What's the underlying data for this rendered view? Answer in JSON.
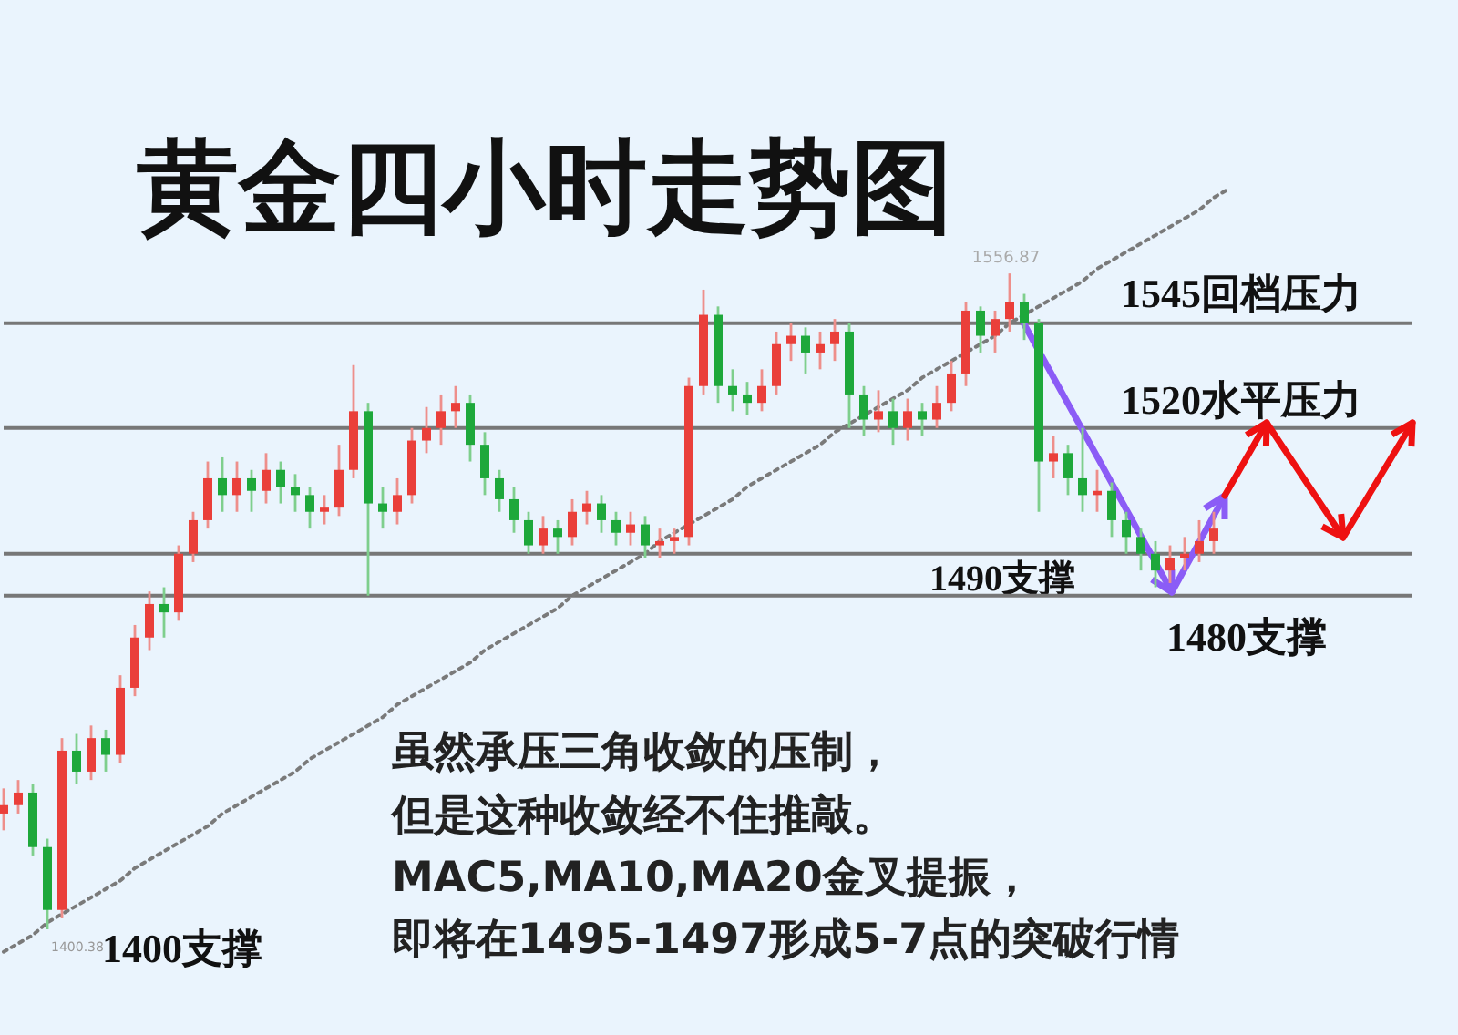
{
  "chart_data": {
    "type": "candlestick",
    "title": "黄金四小时走势图",
    "tick_labels": false,
    "categories": [
      null,
      null,
      null,
      null,
      null,
      null,
      null,
      null,
      null,
      null,
      null,
      null,
      null,
      null,
      null,
      null,
      null,
      null,
      null,
      null,
      null,
      null,
      null,
      null,
      null,
      null,
      null,
      null,
      null,
      null,
      null,
      null,
      null,
      null,
      null,
      null,
      null,
      null,
      null,
      null,
      null,
      null,
      null,
      null,
      null,
      null,
      null,
      null,
      null,
      null,
      null,
      null,
      null,
      null,
      null,
      null,
      null,
      null,
      null,
      null,
      null,
      null,
      null,
      null,
      null,
      null,
      null,
      null,
      null,
      null,
      null,
      null,
      null,
      null,
      null,
      null,
      null,
      null,
      null,
      null,
      null,
      null,
      null,
      null,
      null,
      null,
      null,
      null,
      null,
      null,
      null,
      null,
      null,
      null,
      null,
      null,
      null,
      null
    ],
    "ohlc": [
      [
        1428,
        1434,
        1424,
        1430
      ],
      [
        1430,
        1436,
        1428,
        1433
      ],
      [
        1433,
        1435,
        1418,
        1420
      ],
      [
        1420,
        1422,
        1400.38,
        1405
      ],
      [
        1405,
        1446,
        1403,
        1443
      ],
      [
        1443,
        1447,
        1435,
        1438
      ],
      [
        1438,
        1449,
        1436,
        1446
      ],
      [
        1446,
        1448,
        1438,
        1442
      ],
      [
        1442,
        1461,
        1440,
        1458
      ],
      [
        1458,
        1473,
        1456,
        1470
      ],
      [
        1470,
        1481,
        1467,
        1478
      ],
      [
        1478,
        1482,
        1470,
        1476
      ],
      [
        1476,
        1492,
        1474,
        1490
      ],
      [
        1490,
        1500,
        1488,
        1498
      ],
      [
        1498,
        1512,
        1496,
        1508
      ],
      [
        1508,
        1513,
        1500,
        1504
      ],
      [
        1504,
        1512,
        1500,
        1508
      ],
      [
        1508,
        1510,
        1500,
        1505
      ],
      [
        1505,
        1514,
        1502,
        1510
      ],
      [
        1510,
        1512,
        1502,
        1506
      ],
      [
        1506,
        1509,
        1500,
        1504
      ],
      [
        1504,
        1506,
        1496,
        1500
      ],
      [
        1500,
        1504,
        1497,
        1501
      ],
      [
        1501,
        1516,
        1499,
        1510
      ],
      [
        1510,
        1535,
        1508,
        1524
      ],
      [
        1524,
        1526,
        1480,
        1502
      ],
      [
        1502,
        1506,
        1496,
        1500
      ],
      [
        1500,
        1508,
        1497,
        1504
      ],
      [
        1504,
        1520,
        1502,
        1517
      ],
      [
        1517,
        1525,
        1514,
        1520
      ],
      [
        1520,
        1528,
        1516,
        1524
      ],
      [
        1524,
        1530,
        1520,
        1526
      ],
      [
        1526,
        1528,
        1512,
        1516
      ],
      [
        1516,
        1519,
        1504,
        1508
      ],
      [
        1508,
        1510,
        1500,
        1503
      ],
      [
        1503,
        1506,
        1495,
        1498
      ],
      [
        1498,
        1500,
        1490,
        1492
      ],
      [
        1492,
        1499,
        1490,
        1496
      ],
      [
        1496,
        1498,
        1490,
        1494
      ],
      [
        1494,
        1503,
        1492,
        1500
      ],
      [
        1500,
        1505,
        1497,
        1502
      ],
      [
        1502,
        1504,
        1495,
        1498
      ],
      [
        1498,
        1500,
        1492,
        1495
      ],
      [
        1495,
        1500,
        1492,
        1497
      ],
      [
        1497,
        1499,
        1489,
        1492
      ],
      [
        1492,
        1496,
        1489,
        1493
      ],
      [
        1493,
        1496,
        1490,
        1494
      ],
      [
        1494,
        1532,
        1492,
        1530
      ],
      [
        1530,
        1553,
        1528,
        1547
      ],
      [
        1547,
        1549,
        1526,
        1530
      ],
      [
        1530,
        1534,
        1524,
        1528
      ],
      [
        1528,
        1531,
        1523,
        1526
      ],
      [
        1526,
        1534,
        1524,
        1530
      ],
      [
        1530,
        1543,
        1528,
        1540
      ],
      [
        1540,
        1545,
        1536,
        1542
      ],
      [
        1542,
        1544,
        1533,
        1538
      ],
      [
        1538,
        1543,
        1534,
        1540
      ],
      [
        1540,
        1546,
        1536,
        1543
      ],
      [
        1543,
        1545,
        1520,
        1528
      ],
      [
        1528,
        1530,
        1518,
        1522
      ],
      [
        1522,
        1529,
        1519,
        1524
      ],
      [
        1524,
        1527,
        1516,
        1520
      ],
      [
        1520,
        1527,
        1517,
        1524
      ],
      [
        1524,
        1526,
        1518,
        1522
      ],
      [
        1522,
        1530,
        1520,
        1526
      ],
      [
        1526,
        1536,
        1524,
        1533
      ],
      [
        1533,
        1550,
        1530,
        1548
      ],
      [
        1548,
        1549,
        1538,
        1542
      ],
      [
        1542,
        1548,
        1538,
        1546
      ],
      [
        1546,
        1556.87,
        1543,
        1550
      ],
      [
        1550,
        1552,
        1541,
        1545
      ],
      [
        1545,
        1546,
        1500,
        1512
      ],
      [
        1512,
        1518,
        1508,
        1514
      ],
      [
        1514,
        1516,
        1504,
        1508
      ],
      [
        1508,
        1520,
        1500,
        1504
      ],
      [
        1504,
        1510,
        1500,
        1505
      ],
      [
        1505,
        1507,
        1494,
        1498
      ],
      [
        1498,
        1500,
        1490,
        1494
      ],
      [
        1494,
        1496,
        1486,
        1490
      ],
      [
        1490,
        1493,
        1482,
        1486
      ],
      [
        1486,
        1492,
        1483,
        1489
      ],
      [
        1489,
        1494,
        1486,
        1490
      ],
      [
        1490,
        1498,
        1488,
        1493
      ],
      [
        1493,
        1500,
        1490,
        1496
      ],
      null,
      null,
      null,
      null,
      null,
      null,
      null,
      null,
      null,
      null,
      null,
      null,
      null,
      null
    ],
    "series": [
      {
        "type": "line",
        "line_style": "dotted",
        "color": "#7a7a7a",
        "values": [
          1395,
          1397,
          1399,
          1402,
          1404,
          1406,
          1408,
          1410,
          1412,
          1415,
          1417,
          1419,
          1421,
          1423,
          1425,
          1428,
          1430,
          1432,
          1434,
          1436,
          1438,
          1441,
          1443,
          1445,
          1447,
          1449,
          1451,
          1454,
          1456,
          1458,
          1460,
          1462,
          1464,
          1467,
          1469,
          1471,
          1473,
          1475,
          1477,
          1480,
          1482,
          1484,
          1486,
          1488,
          1490,
          1493,
          1495,
          1497,
          1499,
          1501,
          1503,
          1506,
          1508,
          1510,
          1512,
          1514,
          1516,
          1519,
          1521,
          1523,
          1525,
          1527,
          1529,
          1532,
          1534,
          1536,
          1538,
          1540,
          1542,
          1545,
          1547,
          1549,
          1551,
          1553,
          1555,
          1558,
          1560,
          1562,
          1564,
          1566,
          1568,
          1570,
          1572,
          1575,
          1577,
          null,
          null,
          null,
          null,
          null,
          null,
          null,
          null,
          null,
          null,
          null,
          null,
          null
        ]
      }
    ],
    "ref_lines": [
      {
        "axis": "y",
        "value": 1545,
        "label": "1545回档压力",
        "color": "#777777"
      },
      {
        "axis": "y",
        "value": 1520,
        "label": "1520水平压力",
        "color": "#777777"
      },
      {
        "axis": "y",
        "value": 1490,
        "label": "1490支撑",
        "color": "#777777"
      },
      {
        "axis": "y",
        "value": 1480,
        "label": "1480支撑",
        "color": "#777777"
      }
    ],
    "annotations": [
      {
        "text": "1556.87",
        "y": 1556.87
      },
      "1400.38",
      "1400支撑",
      "虽然承压三角收敛的压制，",
      "但是这种收敛经不住推敲。",
      "MAC5,MA10,MA20金叉提振，",
      "即将在1495-1497形成5-7点的突破行情"
    ]
  }
}
